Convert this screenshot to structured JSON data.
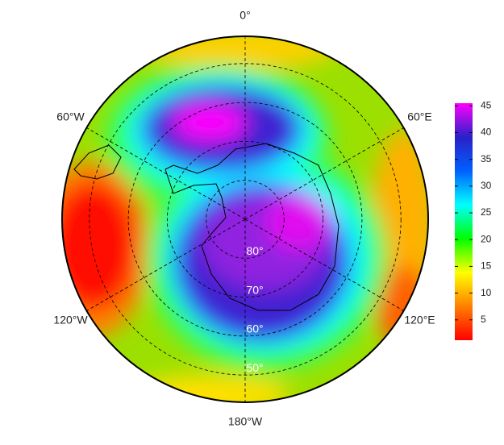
{
  "map": {
    "meridians": [
      {
        "value": 0,
        "label": "0°"
      },
      {
        "value": 60,
        "label": "60°E"
      },
      {
        "value": 120,
        "label": "120°E"
      },
      {
        "value": 180,
        "label": "180°W"
      },
      {
        "value": -120,
        "label": "120°W"
      },
      {
        "value": -60,
        "label": "60°W"
      }
    ],
    "parallels": [
      {
        "value": 80,
        "label": "80°"
      },
      {
        "value": 70,
        "label": "70°"
      },
      {
        "value": 60,
        "label": "60°"
      },
      {
        "value": 50,
        "label": "50°"
      }
    ],
    "rlim": [
      90,
      43
    ],
    "colorbar": {
      "clim": [
        1.2,
        45.5
      ],
      "ticks": [
        5,
        10,
        15,
        20,
        25,
        30,
        35,
        40,
        45
      ],
      "colors": [
        "#ff0000",
        "#ff8000",
        "#ffff00",
        "#00ff00",
        "#00ffff",
        "#0060ff",
        "#2a20c8",
        "#ff00ff"
      ]
    }
  }
}
